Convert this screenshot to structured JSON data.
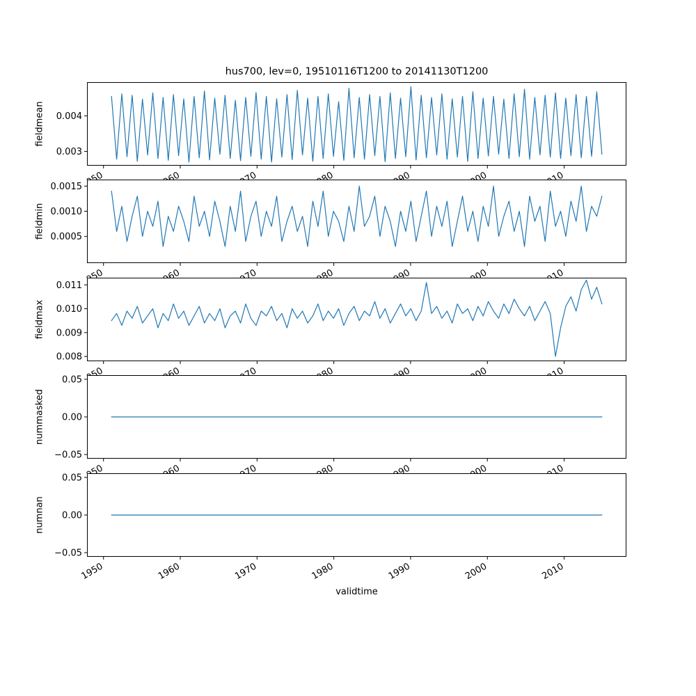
{
  "chart_data": {
    "type": "line",
    "title": "hus700, lev=0, 19510116T1200 to 20141130T1200",
    "xlabel": "validtime",
    "line_color": "#1f77b4",
    "xlim": [
      1947.85,
      2018.11
    ],
    "xtick_values": [
      1950,
      1960,
      1970,
      1980,
      1990,
      2000,
      2010
    ],
    "xtick_labels": [
      "1950",
      "1960",
      "1970",
      "1980",
      "1990",
      "2000",
      "2010"
    ],
    "legend": "none",
    "grid": false,
    "plots": [
      {
        "ylabel": "fieldmean",
        "ylim": [
          0.0026,
          0.00495
        ],
        "ytick_values": [
          0.003,
          0.004
        ],
        "ytick_labels": [
          "0.003",
          "0.004"
        ],
        "x_range": [
          1951.04,
          2014.92
        ],
        "values": [
          0.00455,
          0.00278,
          0.00462,
          0.00285,
          0.00458,
          0.00272,
          0.00447,
          0.0029,
          0.00465,
          0.0028,
          0.00452,
          0.00275,
          0.0046,
          0.00288,
          0.00448,
          0.0027,
          0.00455,
          0.00282,
          0.0047,
          0.00276,
          0.0045,
          0.00292,
          0.00458,
          0.0028,
          0.00444,
          0.00274,
          0.00452,
          0.00286,
          0.00466,
          0.00278,
          0.00455,
          0.0027,
          0.00448,
          0.00284,
          0.0046,
          0.00277,
          0.00472,
          0.0029,
          0.0045,
          0.00272,
          0.00455,
          0.0028,
          0.00462,
          0.00286,
          0.0044,
          0.00275,
          0.00478,
          0.00282,
          0.00452,
          0.00278,
          0.0046,
          0.00288,
          0.00455,
          0.00271,
          0.00465,
          0.0028,
          0.0045,
          0.00285,
          0.00482,
          0.00276,
          0.00458,
          0.00282,
          0.00452,
          0.0029,
          0.00462,
          0.00278,
          0.00448,
          0.00284,
          0.00455,
          0.00272,
          0.00468,
          0.0028,
          0.0045,
          0.00287,
          0.00455,
          0.00292,
          0.00447,
          0.0028,
          0.00462,
          0.00285,
          0.00475,
          0.00278,
          0.00452,
          0.0029,
          0.00458,
          0.00284,
          0.00465,
          0.0028,
          0.0045,
          0.00288,
          0.0046,
          0.00282,
          0.00455,
          0.00286,
          0.00468,
          0.00292
        ]
      },
      {
        "ylabel": "fieldmin",
        "ylim": [
          -3e-05,
          0.00163
        ],
        "ytick_values": [
          0.0005,
          0.001,
          0.0015
        ],
        "ytick_labels": [
          "0.0005",
          "0.0010",
          "0.0015"
        ],
        "x_range": [
          1951.04,
          2014.92
        ],
        "values": [
          0.0014,
          0.0006,
          0.0011,
          0.0004,
          0.0009,
          0.0013,
          0.0005,
          0.001,
          0.0007,
          0.0012,
          0.0003,
          0.0009,
          0.0006,
          0.0011,
          0.0008,
          0.0004,
          0.0013,
          0.0007,
          0.001,
          0.0005,
          0.0012,
          0.0008,
          0.0003,
          0.0011,
          0.0006,
          0.0014,
          0.0004,
          0.0009,
          0.0012,
          0.0005,
          0.001,
          0.0007,
          0.0013,
          0.0004,
          0.0008,
          0.0011,
          0.0006,
          0.0009,
          0.0003,
          0.0012,
          0.0007,
          0.0014,
          0.0005,
          0.001,
          0.0008,
          0.0004,
          0.0011,
          0.0006,
          0.0015,
          0.0007,
          0.0009,
          0.0013,
          0.0005,
          0.0011,
          0.0008,
          0.0003,
          0.001,
          0.0006,
          0.0012,
          0.0004,
          0.0009,
          0.0014,
          0.0005,
          0.0011,
          0.0007,
          0.0012,
          0.0003,
          0.0008,
          0.0013,
          0.0006,
          0.001,
          0.0004,
          0.0011,
          0.0007,
          0.0015,
          0.0005,
          0.0009,
          0.0012,
          0.0006,
          0.001,
          0.0003,
          0.0013,
          0.0008,
          0.0011,
          0.0004,
          0.0014,
          0.0007,
          0.001,
          0.0005,
          0.0012,
          0.0008,
          0.0015,
          0.0006,
          0.0011,
          0.0009,
          0.0013
        ]
      },
      {
        "ylabel": "fieldmax",
        "ylim": [
          0.0078,
          0.0113
        ],
        "ytick_values": [
          0.008,
          0.009,
          0.01,
          0.011
        ],
        "ytick_labels": [
          "0.008",
          "0.009",
          "0.010",
          "0.011"
        ],
        "x_range": [
          1951.04,
          2014.92
        ],
        "values": [
          0.0095,
          0.0098,
          0.0093,
          0.0099,
          0.0096,
          0.0101,
          0.0094,
          0.0097,
          0.01,
          0.0092,
          0.0098,
          0.0095,
          0.0102,
          0.0096,
          0.0099,
          0.0093,
          0.0097,
          0.0101,
          0.0094,
          0.0098,
          0.0095,
          0.01,
          0.0092,
          0.0097,
          0.0099,
          0.0094,
          0.0102,
          0.0096,
          0.0093,
          0.0099,
          0.0097,
          0.0101,
          0.0095,
          0.0098,
          0.0092,
          0.01,
          0.0096,
          0.0099,
          0.0094,
          0.0097,
          0.0102,
          0.0095,
          0.0099,
          0.0096,
          0.01,
          0.0093,
          0.0098,
          0.0101,
          0.0095,
          0.0099,
          0.0097,
          0.0103,
          0.0096,
          0.01,
          0.0094,
          0.0098,
          0.0102,
          0.0097,
          0.01,
          0.0095,
          0.0099,
          0.0111,
          0.0098,
          0.0101,
          0.0096,
          0.0099,
          0.0094,
          0.0102,
          0.0098,
          0.01,
          0.0095,
          0.0101,
          0.0097,
          0.0103,
          0.0099,
          0.0096,
          0.0102,
          0.0098,
          0.0104,
          0.01,
          0.0097,
          0.0101,
          0.0095,
          0.0099,
          0.0103,
          0.0098,
          0.008,
          0.0092,
          0.0101,
          0.0105,
          0.0099,
          0.0108,
          0.0112,
          0.0104,
          0.0109,
          0.0102
        ]
      },
      {
        "ylabel": "nummasked",
        "ylim": [
          -0.0555,
          0.0555
        ],
        "ytick_values": [
          -0.05,
          0,
          0.05
        ],
        "ytick_labels": [
          "−0.05",
          "0.00",
          "0.05"
        ],
        "x_range": [
          1951.04,
          2014.92
        ],
        "values": [
          0,
          0
        ]
      },
      {
        "ylabel": "numnan",
        "ylim": [
          -0.0555,
          0.0555
        ],
        "ytick_values": [
          -0.05,
          0,
          0.05
        ],
        "ytick_labels": [
          "−0.05",
          "0.00",
          "0.05"
        ],
        "x_range": [
          1951.04,
          2014.92
        ],
        "values": [
          0,
          0
        ]
      }
    ]
  }
}
